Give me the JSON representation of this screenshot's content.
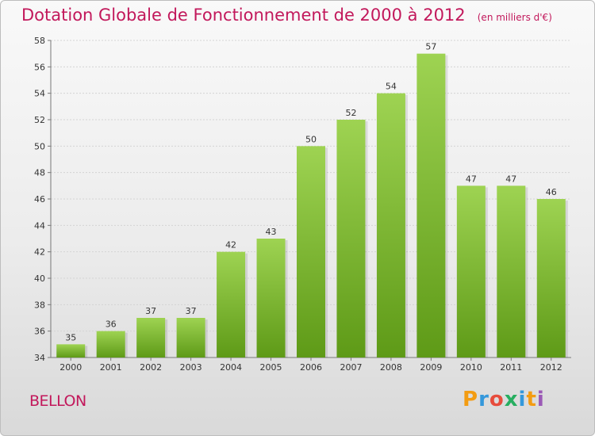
{
  "header": {
    "title": "Dotation Globale de Fonctionnement de 2000 à 2012",
    "unit": "(en milliers d'€)"
  },
  "commune": "BELLON",
  "logo": {
    "text": "Proxiti",
    "letters": [
      {
        "ch": "P",
        "color": "#f39c12"
      },
      {
        "ch": "r",
        "color": "#3498db"
      },
      {
        "ch": "o",
        "color": "#e74c3c"
      },
      {
        "ch": "x",
        "color": "#27ae60"
      },
      {
        "ch": "i",
        "color": "#3498db"
      },
      {
        "ch": "t",
        "color": "#f39c12"
      },
      {
        "ch": "i",
        "color": "#9b59b6"
      }
    ]
  },
  "colors": {
    "title": "#c2185b",
    "bar_top": "#9ed352",
    "bar_bottom": "#5e9a17"
  },
  "chart_data": {
    "type": "bar",
    "categories": [
      "2000",
      "2001",
      "2002",
      "2003",
      "2004",
      "2005",
      "2006",
      "2007",
      "2008",
      "2009",
      "2010",
      "2011",
      "2012"
    ],
    "values": [
      35,
      36,
      37,
      37,
      42,
      43,
      50,
      52,
      54,
      57,
      47,
      47,
      46
    ],
    "ylim": [
      34,
      58
    ],
    "yticks": [
      34,
      36,
      38,
      40,
      42,
      44,
      46,
      48,
      50,
      52,
      54,
      56,
      58
    ],
    "grid": true,
    "data_labels": true
  }
}
